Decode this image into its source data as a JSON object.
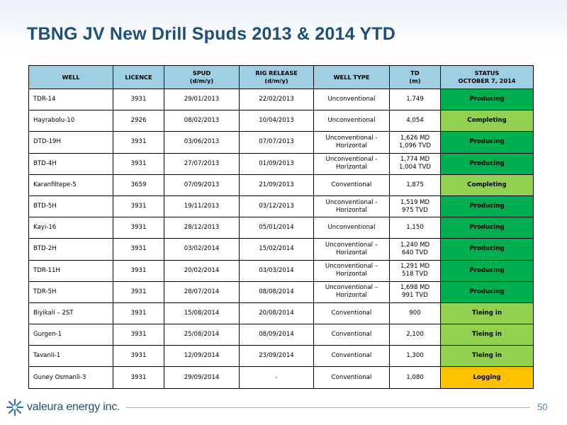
{
  "title": "TBNG JV New Drill Spuds 2013 & 2014 YTD",
  "table": {
    "headers": {
      "well": "WELL",
      "licence": "LICENCE",
      "spud_line1": "SPUD",
      "spud_line2": "(d/m/y)",
      "rig_line1": "RIG RELEASE",
      "rig_line2": "(d/m/y)",
      "well_type": "WELL TYPE",
      "td_line1": "TD",
      "td_line2": "(m)",
      "status_line1": "STATUS",
      "status_line2": "OCTOBER 7, 2014"
    },
    "rows": [
      {
        "well": "TDR-14",
        "licence": "3931",
        "spud": "29/01/2013",
        "rig": "22/02/2013",
        "type1": "Unconventional",
        "type2": "",
        "td1": "1,749",
        "td2": "",
        "status": "Producing",
        "status_color": "#00b050"
      },
      {
        "well": "Hayrabolu-10",
        "licence": "2926",
        "spud": "08/02/2013",
        "rig": "10/04/2013",
        "type1": "Unconventional",
        "type2": "",
        "td1": "4,054",
        "td2": "",
        "status": "Completing",
        "status_color": "#92d050"
      },
      {
        "well": "DTD-19H",
        "licence": "3931",
        "spud": "03/06/2013",
        "rig": "07/07/2013",
        "type1": "Unconventional -",
        "type2": "Horizontal",
        "td1": "1,626 MD",
        "td2": "1,096 TVD",
        "status": "Producing",
        "status_color": "#00b050"
      },
      {
        "well": "BTD-4H",
        "licence": "3931",
        "spud": "27/07/2013",
        "rig": "01/09/2013",
        "type1": "Unconventional -",
        "type2": "Horizontal",
        "td1": "1,774 MD",
        "td2": "1,004 TVD",
        "status": "Producing",
        "status_color": "#00b050"
      },
      {
        "well": "Karanfiltepe-5",
        "licence": "3659",
        "spud": "07/09/2013",
        "rig": "21/09/2013",
        "type1": "Conventional",
        "type2": "",
        "td1": "1,875",
        "td2": "",
        "status": "Completing",
        "status_color": "#92d050"
      },
      {
        "well": "BTD-5H",
        "licence": "3931",
        "spud": "19/11/2013",
        "rig": "03/12/2013",
        "type1": "Unconventional -",
        "type2": "Horizontal",
        "td1": "1,519 MD",
        "td2": "975 TVD",
        "status": "Producing",
        "status_color": "#00b050"
      },
      {
        "well": "Kayi-16",
        "licence": "3931",
        "spud": "28/12/2013",
        "rig": "05/01/2014",
        "type1": "Unconventional",
        "type2": "",
        "td1": "1,150",
        "td2": "",
        "status": "Producing",
        "status_color": "#00b050"
      },
      {
        "well": "BTD-2H",
        "licence": "3931",
        "spud": "03/02/2014",
        "rig": "15/02/2014",
        "type1": "Unconventional –",
        "type2": "Horizontal",
        "td1": "1,240 MD",
        "td2": "640 TVD",
        "status": "Producing",
        "status_color": "#00b050"
      },
      {
        "well": "TDR-11H",
        "licence": "3931",
        "spud": "20/02/2014",
        "rig": "03/03/2014",
        "type1": "Unconventional –",
        "type2": "Horizontal",
        "td1": "1,291 MD",
        "td2": "518 TVD",
        "status": "Producing",
        "status_color": "#00b050"
      },
      {
        "well": "TDR-5H",
        "licence": "3931",
        "spud": "28/07/2014",
        "rig": "08/08/2014",
        "type1": "Unconventional –",
        "type2": "Horizontal",
        "td1": "1,698 MD",
        "td2": "991 TVD",
        "status": "Producing",
        "status_color": "#00b050"
      },
      {
        "well": "Biyikali – 2ST",
        "licence": "3931",
        "spud": "15/08/2014",
        "rig": "20/08/2014",
        "type1": "Conventional",
        "type2": "",
        "td1": "900",
        "td2": "",
        "status": "Tieing in",
        "status_color": "#92d050"
      },
      {
        "well": "Gurgen-1",
        "licence": "3931",
        "spud": "25/08/2014",
        "rig": "08/09/2014",
        "type1": "Conventional",
        "type2": "",
        "td1": "2,100",
        "td2": "",
        "status": "Tieing in",
        "status_color": "#92d050"
      },
      {
        "well": "Tavanli-1",
        "licence": "3931",
        "spud": "12/09/2014",
        "rig": "23/09/2014",
        "type1": "Conventional",
        "type2": "",
        "td1": "1,300",
        "td2": "",
        "status": "Tieing in",
        "status_color": "#92d050"
      },
      {
        "well": "Guney Osmanli-3",
        "licence": "3931",
        "spud": "29/09/2014",
        "rig": "-",
        "type1": "Conventional",
        "type2": "",
        "td1": "1,080",
        "td2": "",
        "status": "Logging",
        "status_color": "#ffc000"
      }
    ]
  },
  "footer": {
    "logo_text": "valeura energy inc.",
    "page_number": "50"
  }
}
